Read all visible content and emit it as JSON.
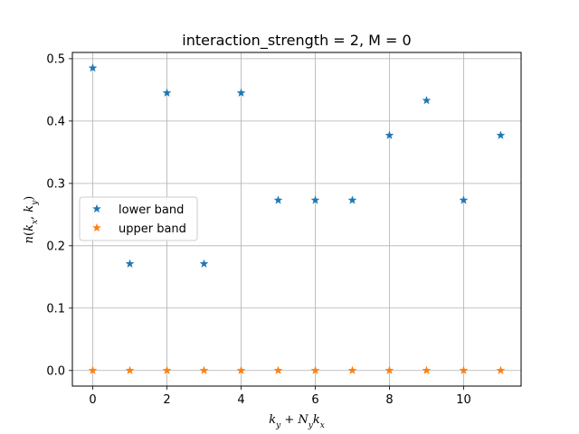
{
  "chart_data": {
    "type": "scatter",
    "title": "interaction_strength = 2, M = 0",
    "xlabel": "k_y + N_y k_x",
    "ylabel": "n(k_x, k_y)",
    "xlim": [
      -0.55,
      11.55
    ],
    "ylim": [
      -0.025,
      0.51
    ],
    "x_ticks": [
      0,
      2,
      4,
      6,
      8,
      10
    ],
    "y_ticks": [
      0.0,
      0.1,
      0.2,
      0.3,
      0.4,
      0.5
    ],
    "x_tick_labels": [
      "0",
      "2",
      "4",
      "6",
      "8",
      "10"
    ],
    "y_tick_labels": [
      "0.0",
      "0.1",
      "0.2",
      "0.3",
      "0.4",
      "0.5"
    ],
    "grid": true,
    "legend_position": "center-left",
    "x": [
      0,
      1,
      2,
      3,
      4,
      5,
      6,
      7,
      8,
      9,
      10,
      11
    ],
    "series": [
      {
        "name": "lower band",
        "color": "#1f77b4",
        "marker": "star",
        "values": [
          0.485,
          0.171,
          0.445,
          0.171,
          0.445,
          0.273,
          0.273,
          0.273,
          0.377,
          0.433,
          0.273,
          0.377
        ]
      },
      {
        "name": "upper band",
        "color": "#ff7f0e",
        "marker": "star",
        "values": [
          0.0,
          0.0,
          0.0,
          0.0,
          0.0,
          0.0,
          0.0,
          0.0,
          0.0,
          0.0,
          0.0,
          0.0
        ]
      }
    ]
  }
}
